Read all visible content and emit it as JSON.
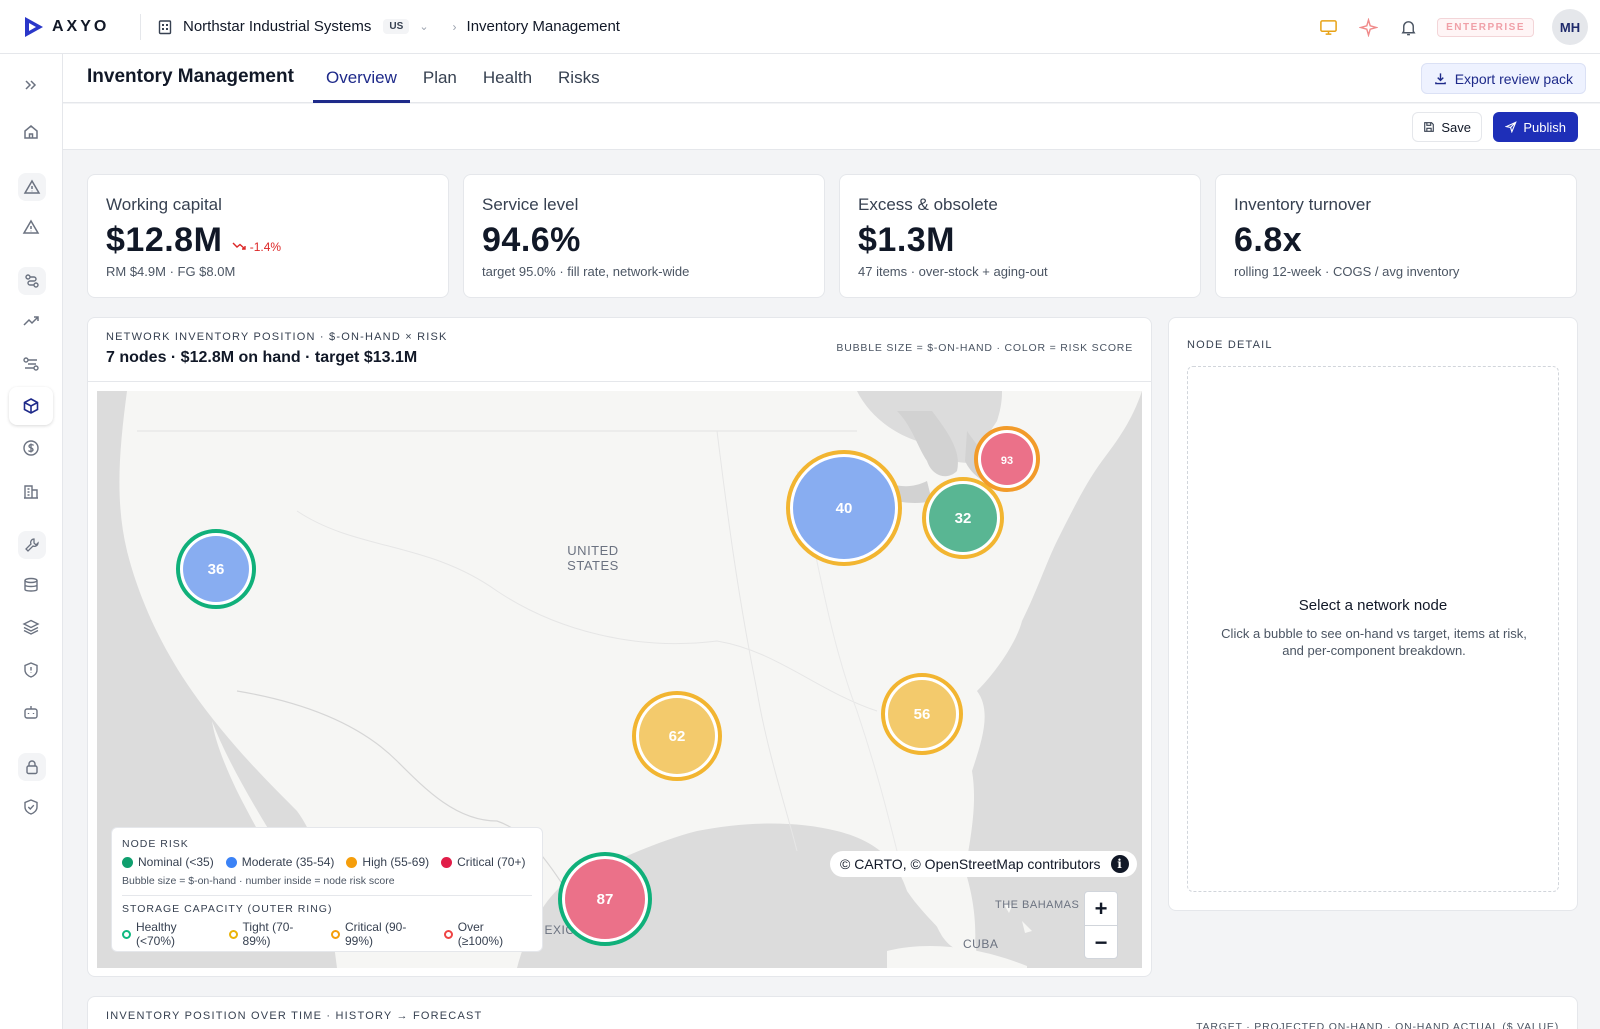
{
  "header": {
    "brand": "AXYO",
    "org_name": "Northstar Industrial Systems",
    "org_region": "US",
    "breadcrumb": "Inventory Management",
    "plan_badge": "ENTERPRISE",
    "avatar_initials": "MH"
  },
  "sidebar": {
    "items": [
      "expand-icon",
      "home-icon",
      "alert-triangle-icon",
      "warning-icon",
      "route-icon",
      "trending-up-icon",
      "flow-icon",
      "package-icon",
      "dollar-icon",
      "building-icon",
      "wrench-icon",
      "database-icon",
      "layers-icon",
      "shield-alert-icon",
      "bot-icon",
      "lock-icon",
      "shield-check-icon"
    ],
    "active": "package-icon"
  },
  "page": {
    "title": "Inventory Management",
    "tabs": [
      {
        "label": "Overview",
        "active": true
      },
      {
        "label": "Plan",
        "active": false
      },
      {
        "label": "Health",
        "active": false
      },
      {
        "label": "Risks",
        "active": false
      }
    ],
    "export_label": "Export review pack",
    "save_label": "Save",
    "publish_label": "Publish"
  },
  "kpis": [
    {
      "label": "Working capital",
      "value": "$12.8M",
      "delta": "-1.4%",
      "sub": "RM $4.9M · FG $8.0M"
    },
    {
      "label": "Service level",
      "value": "94.6%",
      "delta": "",
      "sub": "target 95.0% · fill rate, network-wide"
    },
    {
      "label": "Excess & obsolete",
      "value": "$1.3M",
      "delta": "",
      "sub": "47 items · over-stock + aging-out"
    },
    {
      "label": "Inventory turnover",
      "value": "6.8x",
      "delta": "",
      "sub": "rolling 12-week · COGS / avg inventory"
    }
  ],
  "network": {
    "overline": "NETWORK INVENTORY POSITION · $-ON-HAND × RISK",
    "title": "7 nodes · $12.8M on hand · target $13.1M",
    "encoding_note": "BUBBLE SIZE = $-ON-HAND · COLOR = RISK SCORE",
    "map_labels": {
      "country": "UNITED",
      "country2": "STATES",
      "mexico": "MEXICO",
      "bahamas": "THE BAHAMAS",
      "cuba": "CUBA"
    },
    "attribution": "© CARTO, © OpenStreetMap contributors",
    "zoom_in": "+",
    "zoom_out": "−",
    "nodes": [
      {
        "score": "36",
        "fill": "#7ea6f0",
        "ring": "#10b07a"
      },
      {
        "score": "40",
        "fill": "#7ea6f0",
        "ring": "#f2b531"
      },
      {
        "score": "32",
        "fill": "#4bb08a",
        "ring": "#f2b531"
      },
      {
        "score": "93",
        "fill": "#e9657f",
        "ring": "#f29b2a"
      },
      {
        "score": "62",
        "fill": "#f2c560",
        "ring": "#f2b531"
      },
      {
        "score": "56",
        "fill": "#f2c560",
        "ring": "#f2b531"
      },
      {
        "score": "87",
        "fill": "#e9657f",
        "ring": "#10b07a"
      }
    ],
    "legend": {
      "risk_title": "NODE RISK",
      "risk_items": [
        {
          "label": "Nominal (<35)",
          "color": "#0f9f6e"
        },
        {
          "label": "Moderate (35-54)",
          "color": "#3b82f6"
        },
        {
          "label": "High (55-69)",
          "color": "#f59e0b"
        },
        {
          "label": "Critical (70+)",
          "color": "#e11d48"
        }
      ],
      "note": "Bubble size = $-on-hand · number inside = node risk score",
      "capacity_title": "STORAGE CAPACITY (OUTER RING)",
      "capacity_items": [
        {
          "label": "Healthy (<70%)",
          "color": "#10b981"
        },
        {
          "label": "Tight (70-89%)",
          "color": "#eab308"
        },
        {
          "label": "Critical (90-99%)",
          "color": "#f59e0b"
        },
        {
          "label": "Over (≥100%)",
          "color": "#ef4444"
        }
      ]
    }
  },
  "node_detail": {
    "heading": "NODE DETAIL",
    "empty_title": "Select a network node",
    "empty_text": "Click a bubble to see on-hand vs target, items at risk, and per-component breakdown."
  },
  "timeline": {
    "overline": "INVENTORY POSITION OVER TIME · HISTORY → FORECAST",
    "legend_note": "TARGET · PROJECTED ON-HAND · ON-HAND ACTUAL ($ VALUE)"
  }
}
